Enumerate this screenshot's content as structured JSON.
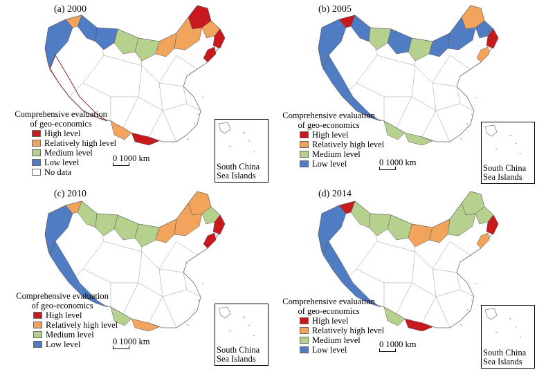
{
  "colors": {
    "high": "#c8191f",
    "rel_high": "#f2a35c",
    "medium": "#b6d08e",
    "low": "#4f7cc2",
    "nodata": "#ffffff"
  },
  "legend": {
    "title_line1": "Comprehensive evaluation",
    "title_line2": "of geo-economics",
    "high": "High level",
    "rel_high": "Relatively high level",
    "medium": "Medium level",
    "low": "Low level",
    "nodata": "No data"
  },
  "scale_label": "0 1000 km",
  "inset_label_line1": "South China",
  "inset_label_line2": "Sea Islands",
  "panels": [
    {
      "title": "(a) 2000",
      "regions": {
        "ne_north": "high",
        "ne_south": "rel_high",
        "ne_edge": "rel_high",
        "ne_tip": "high",
        "ne_coast": "high",
        "imng_east": "rel_high",
        "imng_mid": "medium",
        "imng_west": "medium",
        "gansu": "low",
        "nw_top": "low",
        "xj_west": "low",
        "xj_tip": "rel_high",
        "tibet": "nodata",
        "yunnan": "rel_high",
        "guangxi": "high"
      }
    },
    {
      "title": "(b) 2005",
      "regions": {
        "ne_north": "rel_high",
        "ne_south": "low",
        "ne_edge": "low",
        "ne_tip": "high",
        "ne_coast": "rel_high",
        "imng_east": "low",
        "imng_mid": "medium",
        "imng_west": "low",
        "gansu": "medium",
        "nw_top": "low",
        "xj_west": "low",
        "xj_tip": "high",
        "tibet": "low",
        "yunnan": "medium",
        "guangxi": "medium"
      }
    },
    {
      "title": "(c) 2010",
      "regions": {
        "ne_north": "rel_high",
        "ne_south": "rel_high",
        "ne_edge": "medium",
        "ne_tip": "high",
        "ne_coast": "high",
        "imng_east": "rel_high",
        "imng_mid": "medium",
        "imng_west": "medium",
        "gansu": "medium",
        "nw_top": "medium",
        "xj_west": "low",
        "xj_tip": "rel_high",
        "tibet": "low",
        "yunnan": "medium",
        "guangxi": "rel_high"
      }
    },
    {
      "title": "(d) 2014",
      "regions": {
        "ne_north": "medium",
        "ne_south": "medium",
        "ne_edge": "medium",
        "ne_tip": "high",
        "ne_coast": "rel_high",
        "imng_east": "rel_high",
        "imng_mid": "rel_high",
        "imng_west": "medium",
        "gansu": "medium",
        "nw_top": "medium",
        "xj_west": "low",
        "xj_tip": "high",
        "tibet": "low",
        "yunnan": "medium",
        "guangxi": "high"
      }
    }
  ]
}
